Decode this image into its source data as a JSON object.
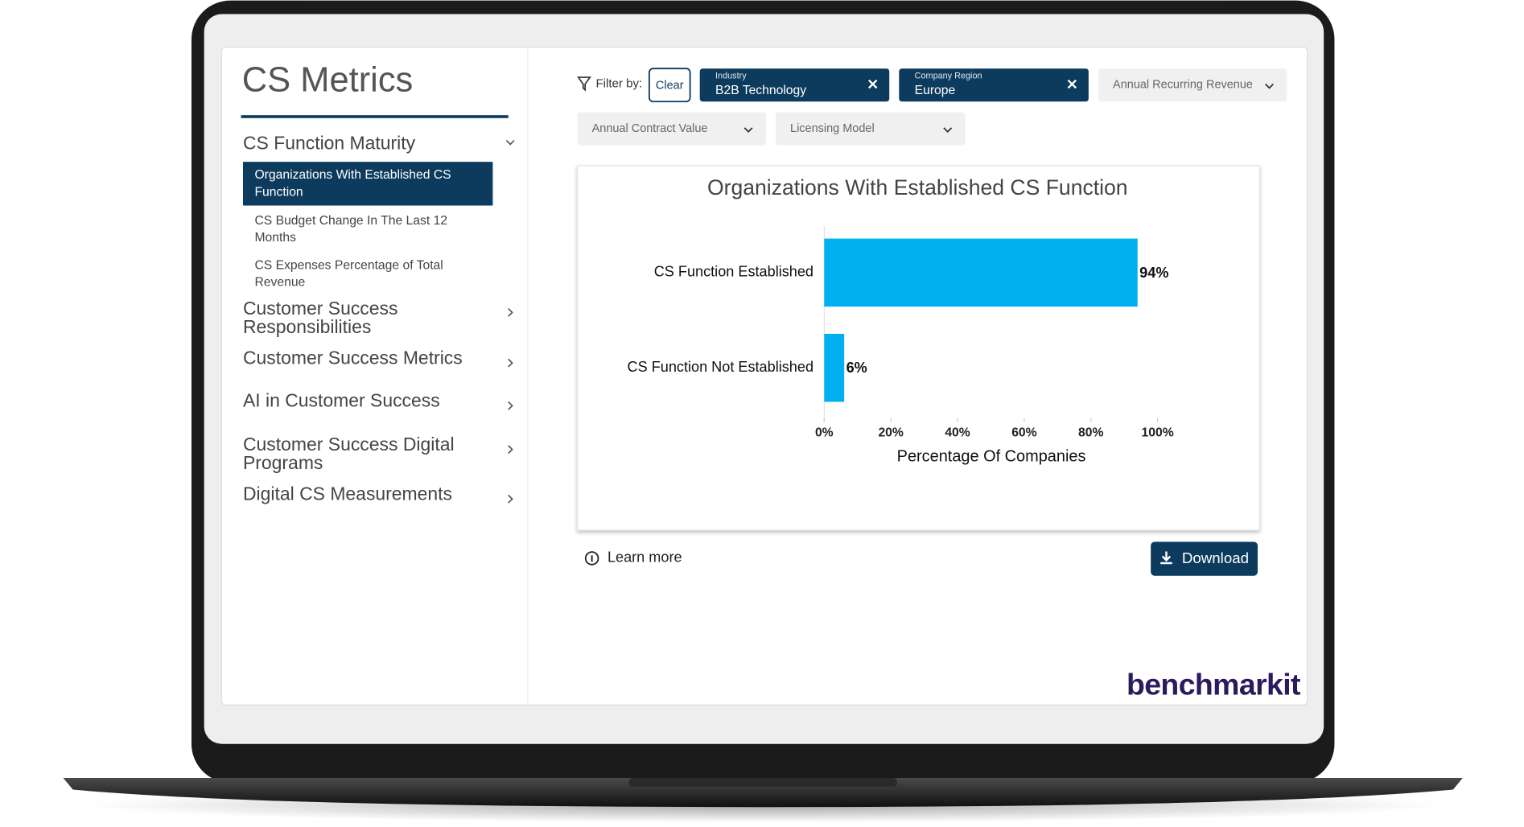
{
  "sidebar": {
    "title": "CS Metrics",
    "sections": [
      {
        "label": [
          "CS Function Maturity"
        ],
        "items": [
          [
            "Organizations With Established CS",
            "Function"
          ],
          [
            "CS Budget Change In The Last 12",
            "Months"
          ],
          [
            "CS Expenses Percentage of Total",
            "Revenue"
          ]
        ]
      },
      {
        "label": [
          "Customer Success",
          "Responsibilities"
        ]
      },
      {
        "label": [
          "Customer Success Metrics"
        ]
      },
      {
        "label": [
          "AI in Customer Success"
        ]
      },
      {
        "label": [
          "Customer Success Digital",
          "Programs"
        ]
      },
      {
        "label": [
          "Digital CS Measurements"
        ]
      }
    ]
  },
  "filters": {
    "label": "Filter by:",
    "clear": "Clear",
    "chips": [
      {
        "name": "Industry",
        "value": "B2B Technology"
      },
      {
        "name": "Company Region",
        "value": "Europe"
      }
    ],
    "dropdowns": [
      "Annual Recurring Revenue",
      "Annual Contract Value",
      "Licensing Model"
    ]
  },
  "chart": {
    "type": "bar",
    "orientation": "horizontal",
    "title": "Organizations With Established CS Function",
    "categories": [
      "CS Function Established",
      "CS Function Not Established"
    ],
    "values": [
      94,
      6
    ],
    "value_labels": [
      "94%",
      "6%"
    ],
    "color": "#00b0f0",
    "xlabel": "Percentage Of Companies",
    "xlim": [
      0,
      100
    ],
    "xticks": [
      {
        "value": 0,
        "label": "0%"
      },
      {
        "value": 20,
        "label": "20%"
      },
      {
        "value": 40,
        "label": "40%"
      },
      {
        "value": 60,
        "label": "60%"
      },
      {
        "value": 80,
        "label": "80%"
      },
      {
        "value": 100,
        "label": "100%"
      }
    ]
  },
  "learn_more": "Learn more",
  "download": "Download",
  "logo": "benchmarkit"
}
